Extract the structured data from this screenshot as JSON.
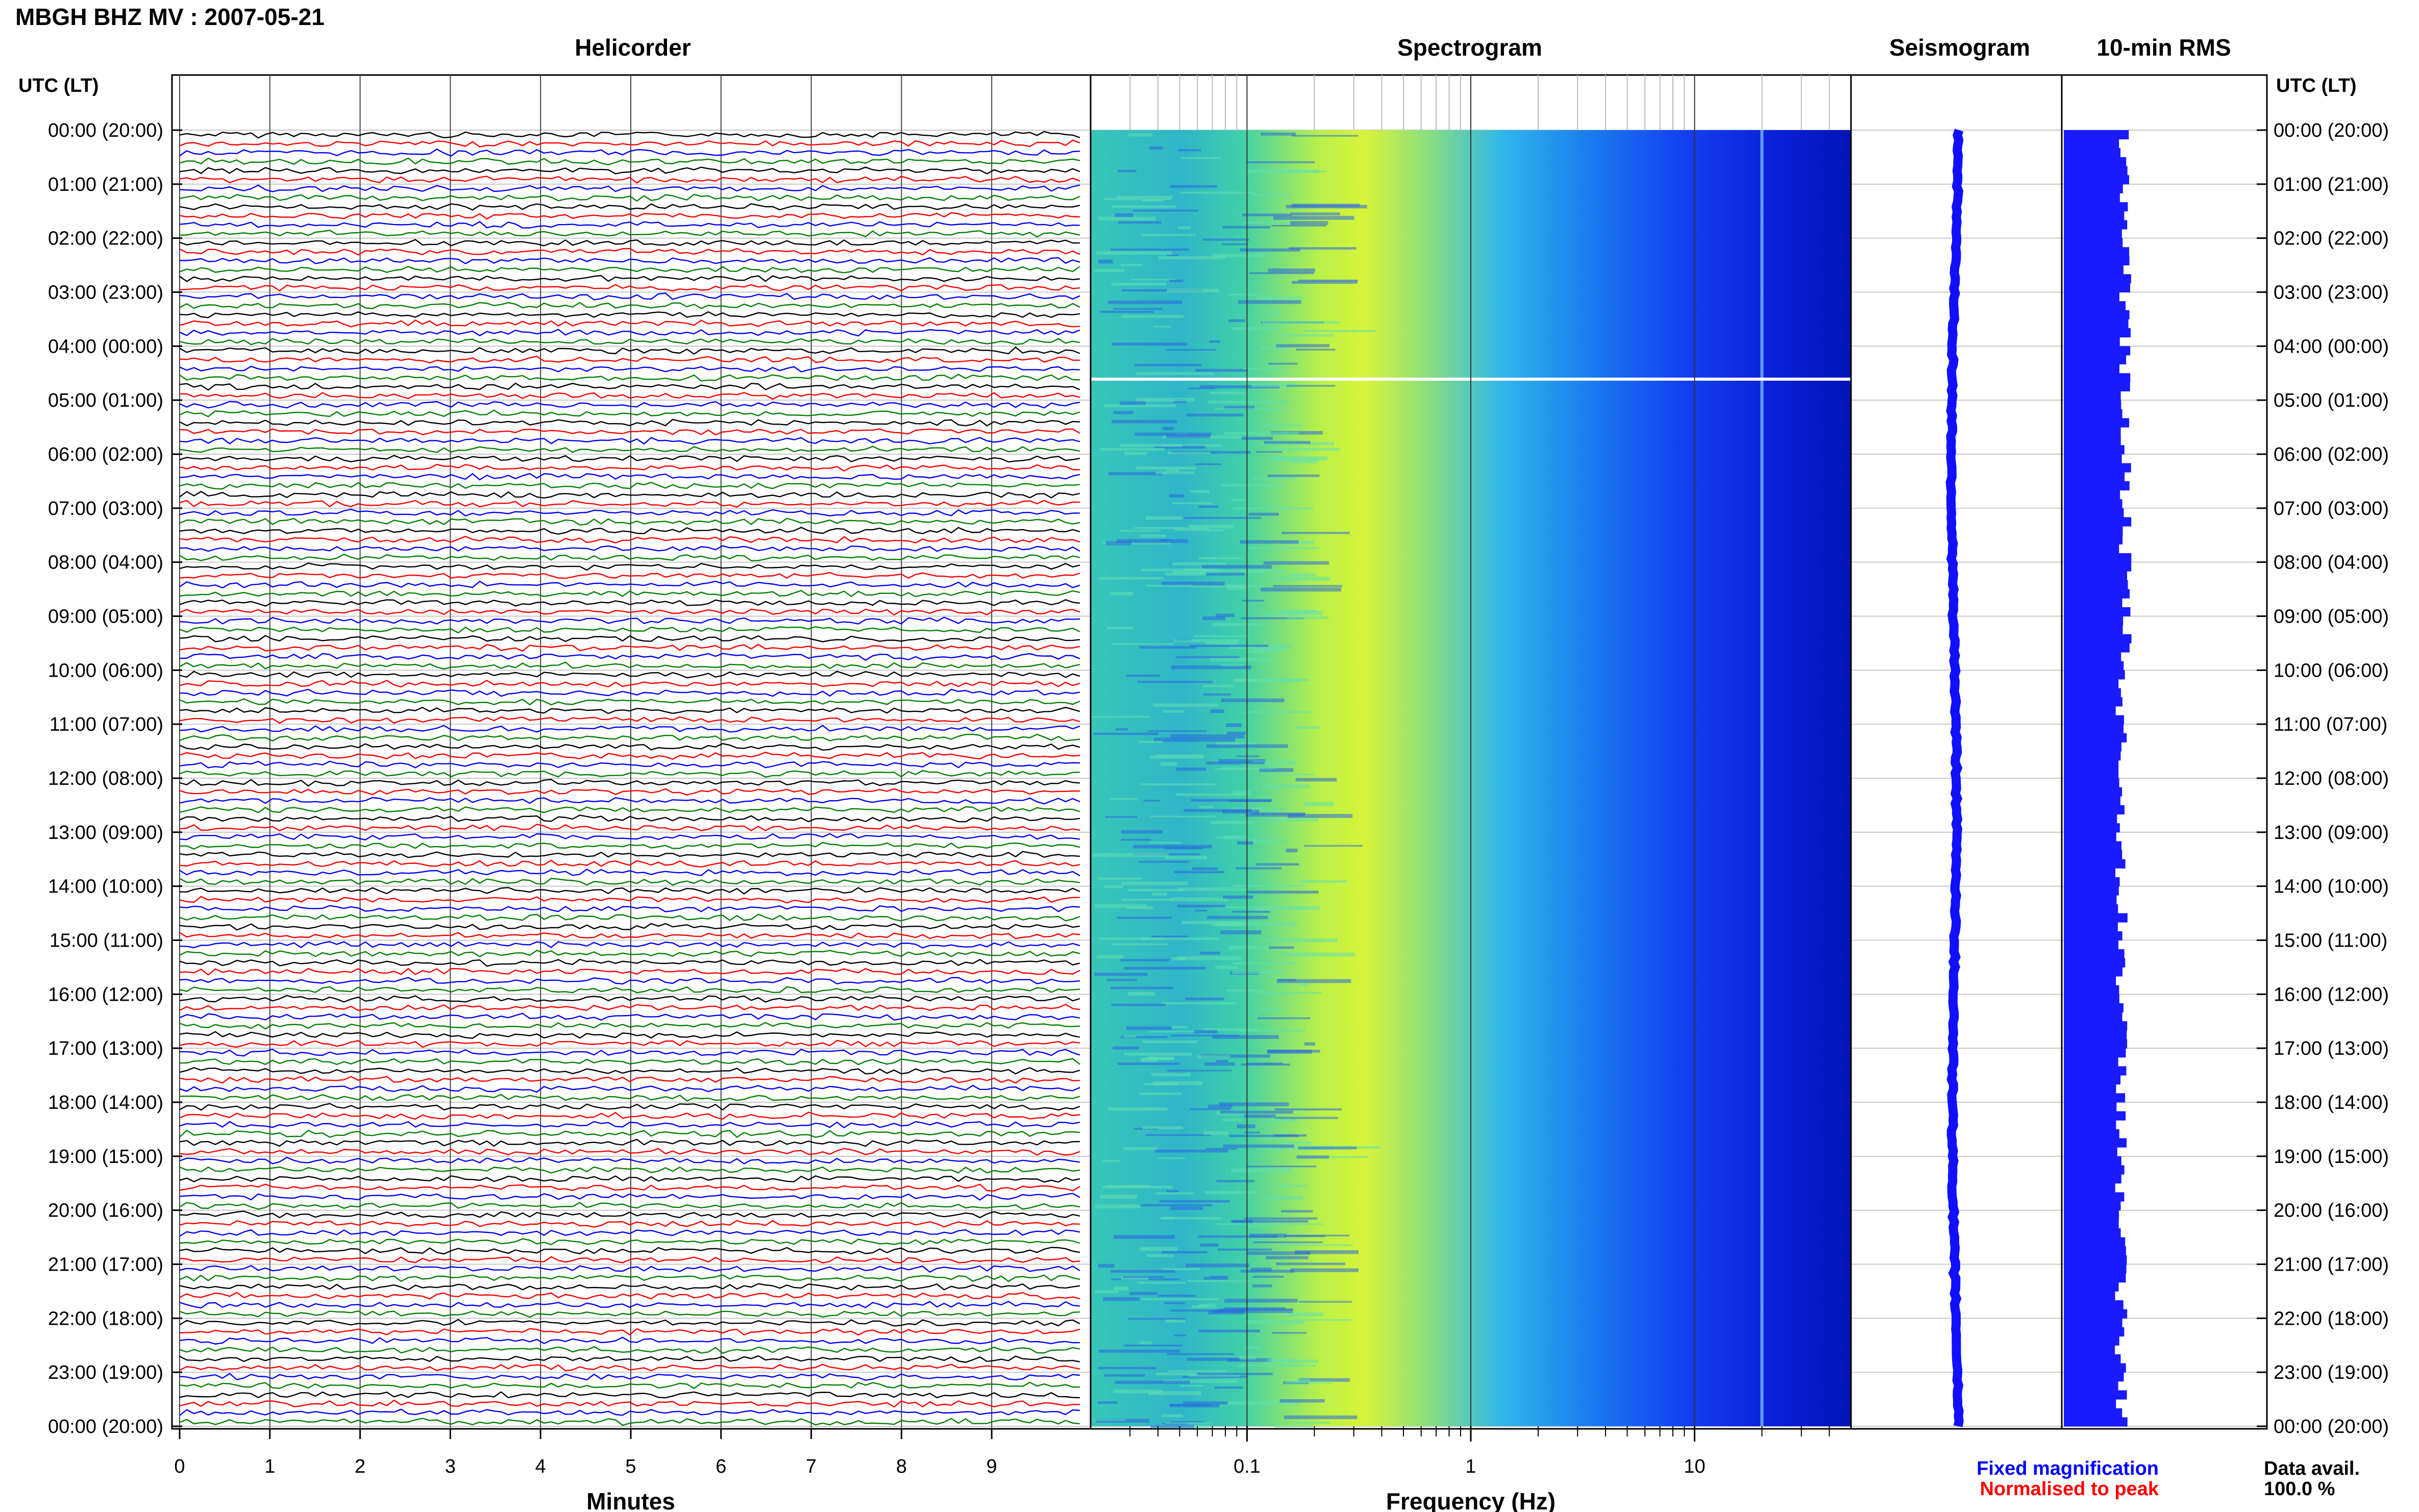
{
  "header": {
    "title": "MBGH BHZ MV : 2007-05-21"
  },
  "panels": {
    "helicorder": "Helicorder",
    "spectrogram": "Spectrogram",
    "seismogram": "Seismogram",
    "rms": "10-min RMS"
  },
  "axes": {
    "utc_label": "UTC (LT)",
    "utc_label_right": "UTC (LT)",
    "minutes_label": "Minutes",
    "frequency_label": "Frequency (Hz)"
  },
  "legend": {
    "fixed": "Fixed magnification",
    "normalised": "Normalised to peak",
    "fixed_color": "#0000ff",
    "normalised_color": "#ff0000"
  },
  "availability": {
    "label": "Data avail.",
    "value": "100.0 %"
  },
  "colors": {
    "trace_cycle": [
      "#000000",
      "#ff0000",
      "#0000ff",
      "#008000"
    ],
    "seismo_blue": "#1010ff",
    "rms_blue": "#1a1aff"
  },
  "chart_data": [
    {
      "type": "line",
      "name": "helicorder",
      "title": "Helicorder",
      "xlabel": "Minutes",
      "ylabel": "UTC (LT)",
      "x_ticks": [
        0,
        1,
        2,
        3,
        4,
        5,
        6,
        7,
        8,
        9
      ],
      "xlim": [
        0,
        10
      ],
      "y_ticks": [
        "00:00 (20:00)",
        "01:00 (21:00)",
        "02:00 (22:00)",
        "03:00 (23:00)",
        "04:00 (00:00)",
        "05:00 (01:00)",
        "06:00 (02:00)",
        "07:00 (03:00)",
        "08:00 (04:00)",
        "09:00 (05:00)",
        "10:00 (06:00)",
        "11:00 (07:00)",
        "12:00 (08:00)",
        "13:00 (09:00)",
        "14:00 (10:00)",
        "15:00 (11:00)",
        "16:00 (12:00)",
        "17:00 (13:00)",
        "18:00 (14:00)",
        "19:00 (15:00)",
        "20:00 (16:00)",
        "21:00 (17:00)",
        "22:00 (18:00)",
        "23:00 (19:00)",
        "00:00 (20:00)"
      ],
      "traces_per_hour": 6,
      "minutes_per_trace": 10
    },
    {
      "type": "heatmap",
      "name": "spectrogram",
      "title": "Spectrogram",
      "xlabel": "Frequency (Hz)",
      "x_scale": "log",
      "xlim": [
        0.02,
        50
      ],
      "x_ticks": [
        "0.1",
        "1",
        "10"
      ],
      "x_tick_values": [
        0.1,
        1,
        10
      ],
      "peak_band_hz": [
        0.2,
        0.5
      ],
      "persistent_line_hz": 20,
      "gap_time_utc": "04:40",
      "colormap": "jet"
    },
    {
      "type": "line",
      "name": "seismogram",
      "title": "Seismogram",
      "ylim_hours": [
        0,
        24
      ]
    },
    {
      "type": "bar",
      "name": "rms",
      "title": "10-min RMS",
      "bins_per_hour": 6
    }
  ]
}
